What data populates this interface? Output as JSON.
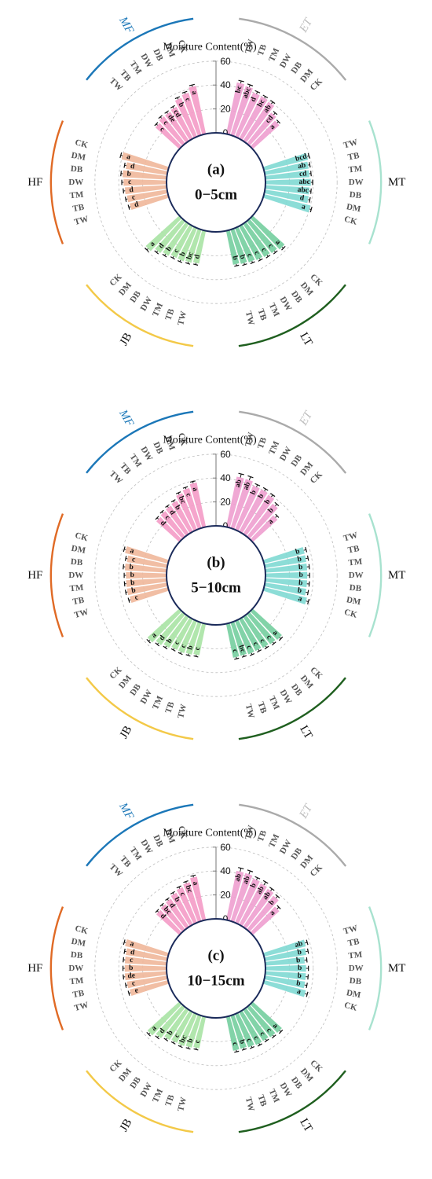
{
  "colors": {
    "ET": "#ee9fcf",
    "MT": "#7fd9d3",
    "LT": "#74ce9e",
    "JB": "#a9e3a4",
    "HF": "#f0b79a",
    "MF": "#f49bc7",
    "arc_ET": "#aaaaaa",
    "arc_MT": "#a8e2cf",
    "arc_LT": "#1f5f1f",
    "arc_JB": "#f3c948",
    "arc_HF": "#e06a25",
    "arc_MF": "#1b77b8",
    "label_ET": "#bdbdbd",
    "label_MF": "#1b77b8"
  },
  "chart_data": [
    {
      "type": "bar",
      "subtype": "radial-bar",
      "panel": "(a)",
      "depth": "0−5cm",
      "axis_title": "Moisture Content(%)",
      "rmax": 60,
      "ticks": [
        "0",
        "20",
        "40",
        "60"
      ],
      "grid": "dashed-circles",
      "groups": [
        {
          "name": "ET",
          "categories": [
            "TW",
            "TB",
            "TM",
            "DW",
            "DB",
            "DM",
            "CK"
          ],
          "values": [
            44,
            43,
            40,
            40,
            39,
            33,
            30
          ],
          "errors": [
            2,
            2,
            2,
            1.5,
            2,
            2,
            1.5
          ],
          "letters": [
            "bc",
            "abc",
            "d",
            "bc",
            "ab",
            "cd",
            "a"
          ]
        },
        {
          "name": "MT",
          "categories": [
            "TW",
            "TB",
            "TM",
            "DW",
            "DB",
            "DM",
            "CK"
          ],
          "values": [
            38,
            37,
            37,
            38,
            37,
            37,
            40
          ],
          "errors": [
            1.5,
            1.5,
            1.5,
            1.5,
            1.5,
            1.5,
            1.5
          ],
          "letters": [
            "bcd",
            "ab",
            "cd",
            "abc",
            "abc",
            "d",
            "a"
          ]
        },
        {
          "name": "LT",
          "categories": [
            "TW",
            "TB",
            "TM",
            "DW",
            "DB",
            "DM",
            "CK"
          ],
          "values": [
            29,
            30,
            31,
            32,
            33,
            34,
            36
          ],
          "errors": [
            1.5,
            1.5,
            1.5,
            1.5,
            1.5,
            1.5,
            1.5
          ],
          "letters": [
            "b",
            "b",
            "c",
            "c",
            "c",
            "c",
            "a"
          ]
        },
        {
          "name": "JB",
          "categories": [
            "TW",
            "TB",
            "TM",
            "DW",
            "DB",
            "DM",
            "CK"
          ],
          "values": [
            28,
            29,
            30,
            30,
            32,
            34,
            38
          ],
          "errors": [
            1.5,
            1.5,
            1.5,
            1.5,
            1.5,
            1.5,
            1.5
          ],
          "letters": [
            "d",
            "bc",
            "b",
            "c",
            "b",
            "d",
            "a"
          ]
        },
        {
          "name": "HF",
          "categories": [
            "CK",
            "DM",
            "DB",
            "DW",
            "TM",
            "TB",
            "TW"
          ],
          "values": [
            40,
            35,
            37,
            36,
            35,
            34,
            33
          ],
          "errors": [
            1.5,
            1.5,
            1.5,
            1.5,
            1.5,
            1.5,
            1.5
          ],
          "letters": [
            "a",
            "d",
            "b",
            "c",
            "d",
            "c",
            "d"
          ]
        },
        {
          "name": "MF",
          "categories": [
            "CK",
            "DM",
            "DB",
            "DW",
            "TM",
            "TB",
            "TW"
          ],
          "values": [
            41,
            37,
            35,
            30,
            29,
            29,
            27
          ],
          "errors": [
            1.5,
            1.5,
            1.5,
            1.5,
            1.5,
            1.5,
            1.5
          ],
          "letters": [
            "a",
            "c",
            "b",
            "cd",
            "de",
            "c",
            "c"
          ]
        }
      ]
    },
    {
      "type": "bar",
      "subtype": "radial-bar",
      "panel": "(b)",
      "depth": "5−10cm",
      "axis_title": "Moisture Content(%)",
      "rmax": 60,
      "ticks": [
        "0",
        "20",
        "40",
        "60"
      ],
      "grid": "dashed-circles",
      "groups": [
        {
          "name": "ET",
          "categories": [
            "TW",
            "TB",
            "TM",
            "DW",
            "DB",
            "DM",
            "CK"
          ],
          "values": [
            43,
            43,
            40,
            40,
            39,
            35,
            28
          ],
          "errors": [
            3,
            3,
            2,
            2,
            2,
            2,
            2
          ],
          "letters": [
            "ab",
            "ab",
            "b",
            "b",
            "b",
            "b",
            "a"
          ]
        },
        {
          "name": "MT",
          "categories": [
            "TW",
            "TB",
            "TM",
            "DW",
            "DB",
            "DM",
            "CK"
          ],
          "values": [
            35,
            35,
            35,
            35,
            35,
            35,
            37
          ],
          "errors": [
            2,
            2,
            2,
            2,
            2,
            2,
            2
          ],
          "letters": [
            "b",
            "b",
            "b",
            "b",
            "b",
            "b",
            "a"
          ]
        },
        {
          "name": "LT",
          "categories": [
            "TW",
            "TB",
            "TM",
            "DW",
            "DB",
            "DM",
            "CK"
          ],
          "values": [
            29,
            29,
            30,
            30,
            31,
            32,
            33
          ],
          "errors": [
            1.5,
            1.5,
            1.5,
            1.5,
            1.5,
            1.5,
            1.5
          ],
          "letters": [
            "c",
            "bc",
            "c",
            "c",
            "c",
            "c",
            "a"
          ]
        },
        {
          "name": "JB",
          "categories": [
            "TW",
            "TB",
            "TM",
            "DW",
            "DB",
            "DM",
            "CK"
          ],
          "values": [
            27,
            28,
            29,
            29,
            31,
            33,
            36
          ],
          "errors": [
            1.5,
            1.5,
            1.5,
            1.5,
            1.5,
            1.5,
            1.5
          ],
          "letters": [
            "c",
            "b",
            "c",
            "c",
            "b",
            "d",
            "a"
          ]
        },
        {
          "name": "HF",
          "categories": [
            "CK",
            "DM",
            "DB",
            "DW",
            "TM",
            "TB",
            "TW"
          ],
          "values": [
            37,
            34,
            35,
            34,
            34,
            34,
            33
          ],
          "errors": [
            1.5,
            1.5,
            1.5,
            1.5,
            1.5,
            1.5,
            1.5
          ],
          "letters": [
            "a",
            "c",
            "b",
            "b",
            "b",
            "b",
            "c"
          ]
        },
        {
          "name": "MF",
          "categories": [
            "CK",
            "DM",
            "DB",
            "DW",
            "TM",
            "TB",
            "TW"
          ],
          "values": [
            38,
            35,
            33,
            29,
            28,
            27,
            26
          ],
          "errors": [
            1.5,
            1.5,
            1.5,
            1.5,
            1.5,
            1.5,
            1.5
          ],
          "letters": [
            "a",
            "c",
            "bc",
            "b",
            "d",
            "c",
            "d"
          ]
        }
      ]
    },
    {
      "type": "bar",
      "subtype": "radial-bar",
      "panel": "(c)",
      "depth": "10−15cm",
      "axis_title": "Moisture Content(%)",
      "rmax": 60,
      "ticks": [
        "0",
        "20",
        "40",
        "60"
      ],
      "grid": "dashed-circles",
      "groups": [
        {
          "name": "ET",
          "categories": [
            "TW",
            "TB",
            "TM",
            "DW",
            "DB",
            "DM",
            "CK"
          ],
          "values": [
            42,
            42,
            40,
            39,
            38,
            36,
            30
          ],
          "errors": [
            3,
            3,
            2,
            3,
            2,
            2,
            2
          ],
          "letters": [
            "ab",
            "ab",
            "b",
            "ab",
            "ab",
            "b",
            "a"
          ]
        },
        {
          "name": "MT",
          "categories": [
            "TW",
            "TB",
            "TM",
            "DW",
            "DB",
            "DM",
            "CK"
          ],
          "values": [
            36,
            35,
            33,
            34,
            34,
            34,
            36
          ],
          "errors": [
            2,
            2,
            2,
            2,
            2,
            2,
            2
          ],
          "letters": [
            "ab",
            "b",
            "b",
            "b",
            "b",
            "b",
            "a"
          ]
        },
        {
          "name": "LT",
          "categories": [
            "TW",
            "TB",
            "TM",
            "DW",
            "DB",
            "DM",
            "CK"
          ],
          "values": [
            29,
            29,
            30,
            31,
            31,
            32,
            33
          ],
          "errors": [
            1.5,
            1.5,
            1.5,
            1.5,
            1.5,
            1.5,
            1.5
          ],
          "letters": [
            "c",
            "b",
            "c",
            "c",
            "c",
            "c",
            "a"
          ]
        },
        {
          "name": "JB",
          "categories": [
            "TW",
            "TB",
            "TM",
            "DW",
            "DB",
            "DM",
            "CK"
          ],
          "values": [
            27,
            28,
            29,
            29,
            30,
            33,
            36
          ],
          "errors": [
            1.5,
            1.5,
            1.5,
            1.5,
            1.5,
            1.5,
            1.5
          ],
          "letters": [
            "c",
            "b",
            "bc",
            "c",
            "b",
            "d",
            "a"
          ]
        },
        {
          "name": "HF",
          "categories": [
            "CK",
            "DM",
            "DB",
            "DW",
            "TM",
            "TB",
            "TW"
          ],
          "values": [
            37,
            35,
            35,
            35,
            35,
            34,
            33
          ],
          "errors": [
            1.5,
            1.5,
            1.5,
            1.5,
            1.5,
            1.5,
            1.5
          ],
          "letters": [
            "a",
            "d",
            "c",
            "b",
            "de",
            "c",
            "e"
          ]
        },
        {
          "name": "MF",
          "categories": [
            "CK",
            "DM",
            "DB",
            "DW",
            "TM",
            "TB",
            "TW"
          ],
          "values": [
            37,
            34,
            32,
            30,
            28,
            27,
            26
          ],
          "errors": [
            1.5,
            1.5,
            1.5,
            1.5,
            1.5,
            1.5,
            1.5
          ],
          "letters": [
            "a",
            "bc",
            "c",
            "b",
            "d",
            "bc",
            "d"
          ]
        }
      ]
    }
  ]
}
